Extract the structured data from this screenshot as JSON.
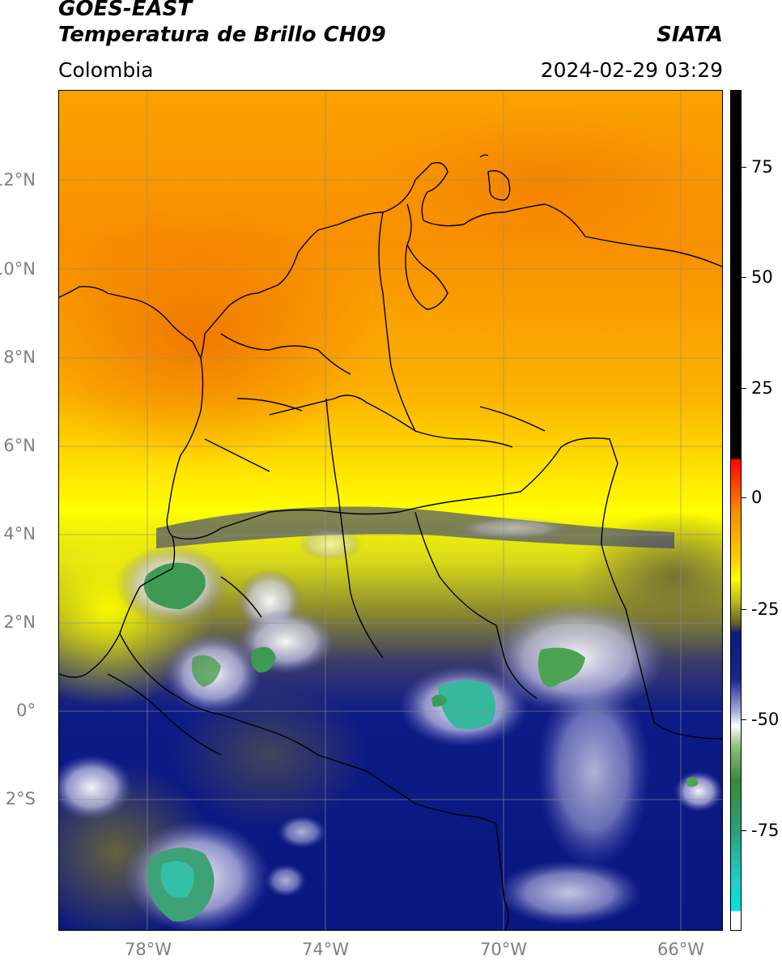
{
  "header": {
    "satellite": "GOES-EAST",
    "product": "Temperatura de Brillo CH09",
    "region": "Colombia",
    "agency": "SIATA",
    "datetime": "2024-02-29 03:29"
  },
  "axes": {
    "lat_labels": [
      "12°N",
      "10°N",
      "8°N",
      "6°N",
      "4°N",
      "2°N",
      "0°",
      "2°S"
    ],
    "lon_labels": [
      "78°W",
      "74°W",
      "70°W",
      "66°W"
    ]
  },
  "colorbar": {
    "labels": [
      "75",
      "50",
      "25",
      "0",
      "-25",
      "-50",
      "-75"
    ]
  },
  "colors": {
    "warm_dark": "#f07a00",
    "warm_mid": "#fbb000",
    "yellow": "#ffff00",
    "olive": "#9a9a2a",
    "navy": "#0b1a80",
    "white": "#ffffff",
    "green": "#46a64a",
    "teal": "#35c3a8",
    "black": "#000000"
  }
}
